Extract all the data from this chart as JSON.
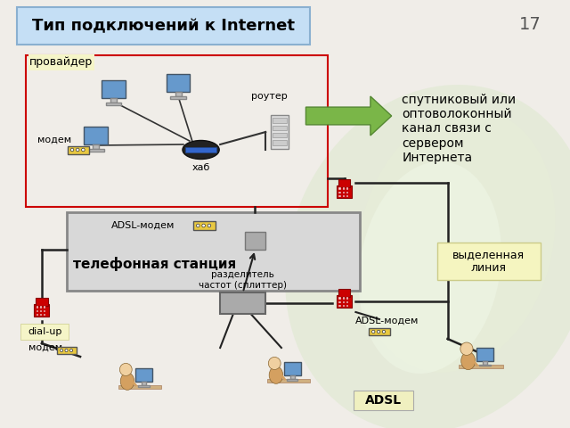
{
  "title": "Тип подключений к Internet",
  "title_bg": "#c5dff5",
  "title_border": "#8ab0d0",
  "slide_number": "17",
  "bg_color": "#f0ede8",
  "provider_label": "провайдер",
  "provider_bg": "#f5f5c8",
  "provider_border": "#cc0000",
  "right_text_line1": "спутниковый или",
  "right_text_line2": "оптоволоконный",
  "right_text_line3": "канал связи с",
  "right_text_line4": "сервером",
  "right_text_line5": "Интернета",
  "arrow_color": "#7ab648",
  "modem_label": "модем",
  "hub_label": "хаб",
  "router_label": "роутер",
  "station_label": "телефонная станция",
  "adsl_modem_label": "ADSL-модем",
  "splitter_label": "разделитель\nчастот (сплиттер)",
  "dialup_label": "dial-up",
  "modem2_label": "модем",
  "adsl_label": "ADSL",
  "adsl_modem2_label": "ADSL-модем",
  "dedicated_label": "выделенная\nлиния",
  "dedicated_bg": "#f5f5c0",
  "station_bg": "#d8d8d8",
  "station_border": "#888888",
  "modem_color": "#e8c840",
  "phone_color_red": "#cc0000",
  "line_color": "#222222",
  "label_bg": "#f5f5c8"
}
